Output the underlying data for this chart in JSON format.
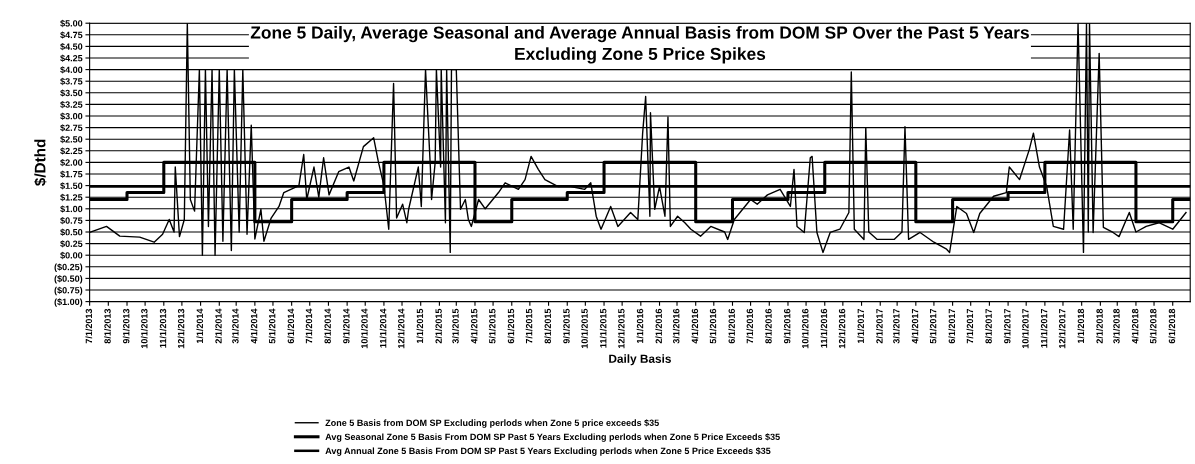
{
  "chart_data": {
    "type": "line",
    "title": "Zone 5 Daily, Average Seasonal and Average Annual Basis from DOM SP Over the Past 5 Years\nExcluding Zone 5 Price Spikes",
    "xlabel": "Daily Basis",
    "ylabel": "$/Dthd",
    "series": [
      {
        "name": "Zone 5 Basis from DOM SP Excluding perlods when Zone 5 price exceeds $35",
        "color": "#000000",
        "x": [
          "2013-07-01",
          "2013-07-29",
          "2013-08-20",
          "2013-09-22",
          "2013-10-16",
          "2013-10-30",
          "2013-11-10",
          "2013-11-18",
          "2013-11-20",
          "2013-11-27",
          "2013-12-05",
          "2013-12-10",
          "2013-12-15",
          "2013-12-22",
          "2013-12-30",
          "2014-01-04",
          "2014-01-09",
          "2014-01-14",
          "2014-01-20",
          "2014-01-25",
          "2014-02-01",
          "2014-02-07",
          "2014-02-14",
          "2014-02-21",
          "2014-02-26",
          "2014-03-06",
          "2014-03-12",
          "2014-03-19",
          "2014-03-26",
          "2014-04-01",
          "2014-04-11",
          "2014-04-16",
          "2014-04-28",
          "2014-05-11",
          "2014-05-19",
          "2014-06-05",
          "2014-06-13",
          "2014-06-21",
          "2014-06-26",
          "2014-07-08",
          "2014-07-16",
          "2014-07-24",
          "2014-08-02",
          "2014-08-18",
          "2014-09-04",
          "2014-09-12",
          "2014-09-28",
          "2014-10-15",
          "2014-10-23",
          "2014-11-01",
          "2014-11-09",
          "2014-11-17",
          "2014-11-22",
          "2014-12-02",
          "2014-12-09",
          "2014-12-12",
          "2014-12-28",
          "2015-01-02",
          "2015-01-09",
          "2015-01-17",
          "2015-01-19",
          "2015-01-25",
          "2015-01-27",
          "2015-02-03",
          "2015-02-04",
          "2015-02-11",
          "2015-02-13",
          "2015-02-19",
          "2015-02-21",
          "2015-03-01",
          "2015-03-08",
          "2015-03-16",
          "2015-03-21",
          "2015-03-26",
          "2015-04-07",
          "2015-04-18",
          "2015-05-10",
          "2015-05-21",
          "2015-06-12",
          "2015-06-23",
          "2015-07-03",
          "2015-07-15",
          "2015-07-26",
          "2015-08-17",
          "2015-09-07",
          "2015-09-30",
          "2015-10-10",
          "2015-10-19",
          "2015-10-27",
          "2015-11-12",
          "2015-11-24",
          "2015-12-15",
          "2015-12-27",
          "2016-01-04",
          "2016-01-09",
          "2016-01-16",
          "2016-01-17",
          "2016-01-24",
          "2016-02-01",
          "2016-02-10",
          "2016-02-15",
          "2016-02-19",
          "2016-03-02",
          "2016-03-14",
          "2016-03-24",
          "2016-04-09",
          "2016-04-26",
          "2016-05-19",
          "2016-05-24",
          "2016-06-04",
          "2016-07-01",
          "2016-07-12",
          "2016-07-29",
          "2016-08-19",
          "2016-09-05",
          "2016-09-11",
          "2016-09-16",
          "2016-09-28",
          "2016-10-08",
          "2016-10-11",
          "2016-10-19",
          "2016-10-29",
          "2016-11-10",
          "2016-11-26",
          "2016-12-11",
          "2016-12-15",
          "2016-12-20",
          "2017-01-05",
          "2017-01-08",
          "2017-01-13",
          "2017-01-27",
          "2017-02-24",
          "2017-03-09",
          "2017-03-14",
          "2017-03-20",
          "2017-04-08",
          "2017-05-01",
          "2017-05-22",
          "2017-05-27",
          "2017-06-08",
          "2017-06-24",
          "2017-07-06",
          "2017-07-16",
          "2017-08-08",
          "2017-08-29",
          "2017-09-03",
          "2017-09-20",
          "2017-10-06",
          "2017-10-13",
          "2017-10-23",
          "2017-11-04",
          "2017-11-15",
          "2017-12-02",
          "2017-12-12",
          "2017-12-18",
          "2017-12-26",
          "2018-01-04",
          "2018-01-09",
          "2018-01-12",
          "2018-01-14",
          "2018-01-20",
          "2018-01-30",
          "2018-02-06",
          "2018-02-22",
          "2018-03-04",
          "2018-03-21",
          "2018-04-01",
          "2018-04-18",
          "2018-05-09",
          "2018-06-01",
          "2018-06-23"
        ],
        "values": [
          0.49,
          0.62,
          0.41,
          0.39,
          0.28,
          0.45,
          0.77,
          0.5,
          1.9,
          0.4,
          0.77,
          5.0,
          1.2,
          0.95,
          4.0,
          0.0,
          4.0,
          0.62,
          4.0,
          0.0,
          4.0,
          0.3,
          4.0,
          0.1,
          4.0,
          0.5,
          4.0,
          0.45,
          2.8,
          0.35,
          0.99,
          0.3,
          0.8,
          1.05,
          1.35,
          1.45,
          1.5,
          2.17,
          1.2,
          1.9,
          1.25,
          2.1,
          1.3,
          1.8,
          1.9,
          1.6,
          2.34,
          2.53,
          2.0,
          1.5,
          0.56,
          3.7,
          0.8,
          1.1,
          0.7,
          0.99,
          1.9,
          1.05,
          4.0,
          1.9,
          1.2,
          2.0,
          4.0,
          1.9,
          4.0,
          0.7,
          4.0,
          0.06,
          4.0,
          4.0,
          0.99,
          1.2,
          0.77,
          0.62,
          1.2,
          1.0,
          1.35,
          1.56,
          1.42,
          1.63,
          2.13,
          1.85,
          1.63,
          1.48,
          1.48,
          1.42,
          1.56,
          0.84,
          0.56,
          1.05,
          0.62,
          0.92,
          0.77,
          2.63,
          3.42,
          0.84,
          3.07,
          0.99,
          1.48,
          0.84,
          2.98,
          0.62,
          0.84,
          0.7,
          0.56,
          0.41,
          0.62,
          0.5,
          0.34,
          0.77,
          1.2,
          1.1,
          1.3,
          1.42,
          1.05,
          1.85,
          0.62,
          0.49,
          2.1,
          2.13,
          0.49,
          0.06,
          0.49,
          0.56,
          0.92,
          3.95,
          0.56,
          0.34,
          2.75,
          0.5,
          0.34,
          0.34,
          0.5,
          2.77,
          0.34,
          0.49,
          0.28,
          0.13,
          0.06,
          1.05,
          0.9,
          0.49,
          0.9,
          1.27,
          1.35,
          1.9,
          1.63,
          2.27,
          2.63,
          1.9,
          1.48,
          0.62,
          0.56,
          2.7,
          0.56,
          5.0,
          0.06,
          5.0,
          0.5,
          5.0,
          0.49,
          4.35,
          0.6,
          0.49,
          0.4,
          0.92,
          0.5,
          0.62,
          0.7,
          0.56,
          0.92
        ]
      },
      {
        "name": "Avg Seasonal Zone 5 Basis From DOM SP Past 5 Years Excluding perlods when Zone 5 Price Exceeds $35",
        "color": "#000000",
        "type": "step",
        "x": [
          "2013-07-01",
          "2013-09-01",
          "2013-11-01",
          "2014-04-01",
          "2014-06-01",
          "2014-09-01",
          "2014-11-01",
          "2015-04-01",
          "2015-06-01",
          "2015-09-01",
          "2015-11-01",
          "2016-04-01",
          "2016-06-01",
          "2016-09-01",
          "2016-11-01",
          "2017-04-01",
          "2017-06-01",
          "2017-09-01",
          "2017-11-01",
          "2018-04-01",
          "2018-06-01",
          "2018-06-30"
        ],
        "values": [
          1.2,
          1.35,
          2.0,
          0.72,
          1.2,
          1.35,
          2.0,
          0.72,
          1.2,
          1.35,
          2.0,
          0.72,
          1.2,
          1.35,
          2.0,
          0.72,
          1.2,
          1.35,
          2.0,
          0.72,
          1.2,
          1.2
        ]
      },
      {
        "name": "Avg Annual Zone 5 Basis From DOM SP Past 5 Years Excluding perlods when Zone 5 Price Exceeds $35",
        "color": "#000000",
        "x": [
          "2013-07-01",
          "2018-06-30"
        ],
        "values": [
          1.48,
          1.48
        ]
      }
    ],
    "xlim": [
      "2013-07-01",
      "2018-06-30"
    ],
    "xticks": [
      {
        "value": "2013-07-01",
        "label": "7/1/2013"
      },
      {
        "value": "2013-08-01",
        "label": "8/1/2013"
      },
      {
        "value": "2013-09-01",
        "label": "9/1/2013"
      },
      {
        "value": "2013-10-01",
        "label": "10/1/2013"
      },
      {
        "value": "2013-11-01",
        "label": "11/1/2013"
      },
      {
        "value": "2013-12-01",
        "label": "12/1/2013"
      },
      {
        "value": "2014-01-01",
        "label": "1/1/2014"
      },
      {
        "value": "2014-02-01",
        "label": "2/1/2014"
      },
      {
        "value": "2014-03-01",
        "label": "3/1/2014"
      },
      {
        "value": "2014-04-01",
        "label": "4/1/2014"
      },
      {
        "value": "2014-05-01",
        "label": "5/1/2014"
      },
      {
        "value": "2014-06-01",
        "label": "6/1/2014"
      },
      {
        "value": "2014-07-01",
        "label": "7/1/2014"
      },
      {
        "value": "2014-08-01",
        "label": "8/1/2014"
      },
      {
        "value": "2014-09-01",
        "label": "9/1/2014"
      },
      {
        "value": "2014-10-01",
        "label": "10/1/2014"
      },
      {
        "value": "2014-11-01",
        "label": "11/1/2014"
      },
      {
        "value": "2014-12-01",
        "label": "12/1/2014"
      },
      {
        "value": "2015-01-01",
        "label": "1/1/2015"
      },
      {
        "value": "2015-02-01",
        "label": "2/1/2015"
      },
      {
        "value": "2015-03-01",
        "label": "3/1/2015"
      },
      {
        "value": "2015-04-01",
        "label": "4/1/2015"
      },
      {
        "value": "2015-05-01",
        "label": "5/1/2015"
      },
      {
        "value": "2015-06-01",
        "label": "6/1/2015"
      },
      {
        "value": "2015-07-01",
        "label": "7/1/2015"
      },
      {
        "value": "2015-08-01",
        "label": "8/1/2015"
      },
      {
        "value": "2015-09-01",
        "label": "9/1/2015"
      },
      {
        "value": "2015-10-01",
        "label": "10/1/2015"
      },
      {
        "value": "2015-11-01",
        "label": "11/1/2015"
      },
      {
        "value": "2015-12-01",
        "label": "12/1/2015"
      },
      {
        "value": "2016-01-01",
        "label": "1/1/2016"
      },
      {
        "value": "2016-02-01",
        "label": "2/1/2016"
      },
      {
        "value": "2016-03-01",
        "label": "3/1/2016"
      },
      {
        "value": "2016-04-01",
        "label": "4/1/2016"
      },
      {
        "value": "2016-05-01",
        "label": "5/1/2016"
      },
      {
        "value": "2016-06-01",
        "label": "6/1/2016"
      },
      {
        "value": "2016-07-01",
        "label": "7/1/2016"
      },
      {
        "value": "2016-08-01",
        "label": "8/1/2016"
      },
      {
        "value": "2016-09-01",
        "label": "9/1/2016"
      },
      {
        "value": "2016-10-01",
        "label": "10/1/2016"
      },
      {
        "value": "2016-11-01",
        "label": "11/1/2016"
      },
      {
        "value": "2016-12-01",
        "label": "12/1/2016"
      },
      {
        "value": "2017-01-01",
        "label": "1/1/2017"
      },
      {
        "value": "2017-02-01",
        "label": "2/1/2017"
      },
      {
        "value": "2017-03-01",
        "label": "3/1/2017"
      },
      {
        "value": "2017-04-01",
        "label": "4/1/2017"
      },
      {
        "value": "2017-05-01",
        "label": "5/1/2017"
      },
      {
        "value": "2017-06-01",
        "label": "6/1/2017"
      },
      {
        "value": "2017-07-01",
        "label": "7/1/2017"
      },
      {
        "value": "2017-08-01",
        "label": "8/1/2017"
      },
      {
        "value": "2017-09-01",
        "label": "9/1/2017"
      },
      {
        "value": "2017-10-01",
        "label": "10/1/2017"
      },
      {
        "value": "2017-11-01",
        "label": "11/1/2017"
      },
      {
        "value": "2017-12-01",
        "label": "12/1/2017"
      },
      {
        "value": "2018-01-01",
        "label": "1/1/2018"
      },
      {
        "value": "2018-02-01",
        "label": "2/1/2018"
      },
      {
        "value": "2018-03-01",
        "label": "3/1/2018"
      },
      {
        "value": "2018-04-01",
        "label": "4/1/2018"
      },
      {
        "value": "2018-05-01",
        "label": "5/1/2018"
      },
      {
        "value": "2018-06-01",
        "label": "6/1/2018"
      }
    ],
    "ylim": [
      -1,
      5
    ],
    "yticks": [
      {
        "value": 5,
        "label": "$5.00"
      },
      {
        "value": 4.75,
        "label": "$4.75"
      },
      {
        "value": 4.5,
        "label": "$4.50"
      },
      {
        "value": 4.25,
        "label": "$4.25"
      },
      {
        "value": 4,
        "label": "$4.00"
      },
      {
        "value": 3.75,
        "label": "$3.75"
      },
      {
        "value": 3.5,
        "label": "$3.50"
      },
      {
        "value": 3.25,
        "label": "$3.25"
      },
      {
        "value": 3,
        "label": "$3.00"
      },
      {
        "value": 2.75,
        "label": "$2.75"
      },
      {
        "value": 2.5,
        "label": "$2.50"
      },
      {
        "value": 2.25,
        "label": "$2.25"
      },
      {
        "value": 2,
        "label": "$2.00"
      },
      {
        "value": 1.75,
        "label": "$1.75"
      },
      {
        "value": 1.5,
        "label": "$1.50"
      },
      {
        "value": 1.25,
        "label": "$1.25"
      },
      {
        "value": 1,
        "label": "$1.00"
      },
      {
        "value": 0.75,
        "label": "$0.75"
      },
      {
        "value": 0.5,
        "label": "$0.50"
      },
      {
        "value": 0.25,
        "label": "$0.25"
      },
      {
        "value": 0,
        "label": "$0.00"
      },
      {
        "value": -0.25,
        "label": "($0.25)"
      },
      {
        "value": -0.5,
        "label": "($0.50)"
      },
      {
        "value": -0.75,
        "label": "($0.75)"
      },
      {
        "value": -1,
        "label": "($1.00)"
      }
    ],
    "grid": "y",
    "legend": "bottom",
    "marker": "none",
    "line_style": "solid"
  }
}
